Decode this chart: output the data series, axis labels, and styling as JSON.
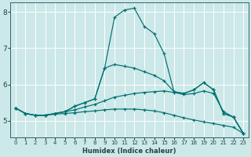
{
  "xlabel": "Humidex (Indice chaleur)",
  "bg_color": "#cce8e8",
  "grid_color": "#ffffff",
  "line_color": "#007070",
  "xlim": [
    -0.5,
    23.5
  ],
  "ylim": [
    4.55,
    8.25
  ],
  "yticks": [
    5,
    6,
    7,
    8
  ],
  "xticks": [
    0,
    1,
    2,
    3,
    4,
    5,
    6,
    7,
    8,
    9,
    10,
    11,
    12,
    13,
    14,
    15,
    16,
    17,
    18,
    19,
    20,
    21,
    22,
    23
  ],
  "lines": [
    {
      "x": [
        0,
        1,
        2,
        3,
        4,
        5,
        6,
        7,
        8,
        9,
        10,
        11,
        12,
        13,
        14,
        15,
        16,
        17,
        18,
        19,
        20,
        21,
        22,
        23
      ],
      "y": [
        5.35,
        5.2,
        5.15,
        5.15,
        5.2,
        5.25,
        5.4,
        5.5,
        5.6,
        6.45,
        7.85,
        8.05,
        8.1,
        7.6,
        7.4,
        6.85,
        5.8,
        5.75,
        5.85,
        6.05,
        5.85,
        5.2,
        5.1,
        4.65
      ]
    },
    {
      "x": [
        0,
        1,
        2,
        3,
        4,
        5,
        6,
        7,
        8,
        9,
        10,
        11,
        12,
        13,
        14,
        15,
        16,
        17,
        18,
        19,
        20,
        21,
        22,
        23
      ],
      "y": [
        5.35,
        5.2,
        5.15,
        5.15,
        5.2,
        5.25,
        5.4,
        5.5,
        5.6,
        6.45,
        6.55,
        6.5,
        6.45,
        6.35,
        6.25,
        6.1,
        5.8,
        5.75,
        5.85,
        6.05,
        5.85,
        5.2,
        5.1,
        4.65
      ]
    },
    {
      "x": [
        0,
        1,
        2,
        3,
        4,
        5,
        6,
        7,
        8,
        9,
        10,
        11,
        12,
        13,
        14,
        15,
        16,
        17,
        18,
        19,
        20,
        21,
        22,
        23
      ],
      "y": [
        5.35,
        5.2,
        5.15,
        5.15,
        5.2,
        5.25,
        5.3,
        5.38,
        5.45,
        5.55,
        5.65,
        5.7,
        5.75,
        5.78,
        5.8,
        5.82,
        5.78,
        5.72,
        5.75,
        5.82,
        5.75,
        5.25,
        5.1,
        4.65
      ]
    },
    {
      "x": [
        0,
        1,
        2,
        3,
        4,
        5,
        6,
        7,
        8,
        9,
        10,
        11,
        12,
        13,
        14,
        15,
        16,
        17,
        18,
        19,
        20,
        21,
        22,
        23
      ],
      "y": [
        5.35,
        5.2,
        5.15,
        5.15,
        5.18,
        5.2,
        5.22,
        5.25,
        5.27,
        5.3,
        5.32,
        5.32,
        5.32,
        5.3,
        5.27,
        5.22,
        5.15,
        5.08,
        5.02,
        4.97,
        4.92,
        4.87,
        4.82,
        4.65
      ]
    }
  ]
}
